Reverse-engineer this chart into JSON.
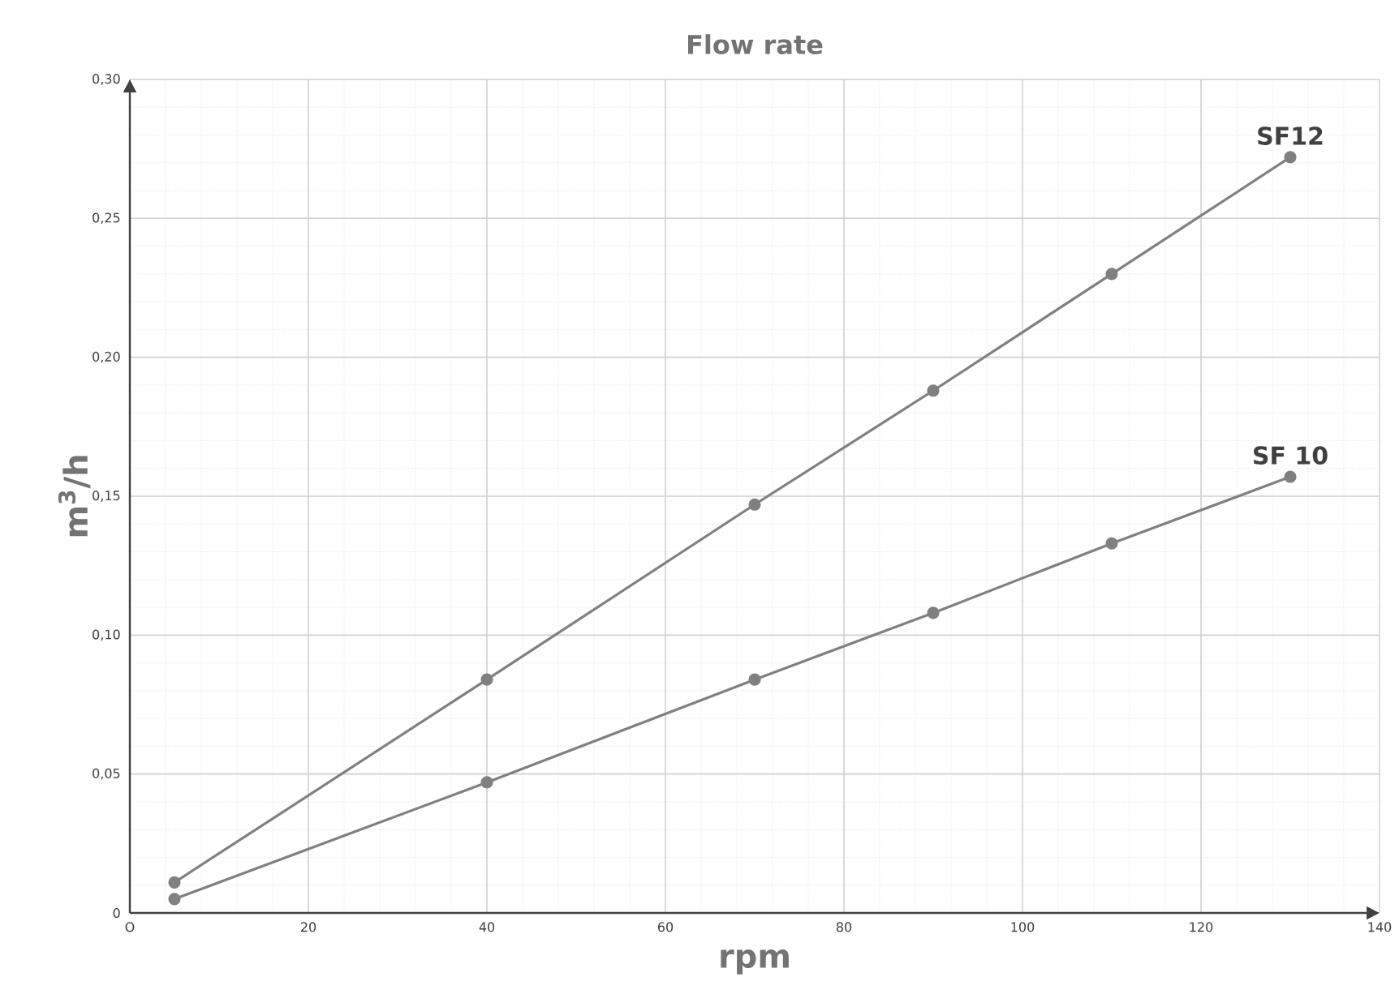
{
  "chart_data": {
    "type": "line",
    "title": "Flow rate",
    "xlabel": "rpm",
    "ylabel": "m$^{3}$/h",
    "xlim": [
      0,
      140
    ],
    "ylim": [
      0,
      0.3
    ],
    "xticks": [
      {
        "value": 0,
        "label": "O"
      },
      20,
      40,
      60,
      80,
      100,
      120,
      140
    ],
    "yticks": [
      0,
      {
        "value": 0.05,
        "label": "0,05"
      },
      {
        "value": 0.1,
        "label": "0,10"
      },
      {
        "value": 0.15,
        "label": "0,15"
      },
      {
        "value": 0.2,
        "label": "0,20"
      },
      {
        "value": 0.25,
        "label": "0,25"
      },
      {
        "value": 0.3,
        "label": "0,30"
      }
    ],
    "grid": true,
    "marker": "circle",
    "line_style": "solid",
    "legend": false,
    "series": [
      {
        "name": "SF12",
        "color": "#808080",
        "x": [
          5,
          40,
          70,
          90,
          110,
          130
        ],
        "values": [
          0.011,
          0.084,
          0.147,
          0.188,
          0.23,
          0.272
        ]
      },
      {
        "name": "SF 10",
        "color": "#808080",
        "x": [
          5,
          40,
          70,
          90,
          110,
          130
        ],
        "values": [
          0.005,
          0.047,
          0.084,
          0.108,
          0.133,
          0.157
        ]
      }
    ]
  }
}
